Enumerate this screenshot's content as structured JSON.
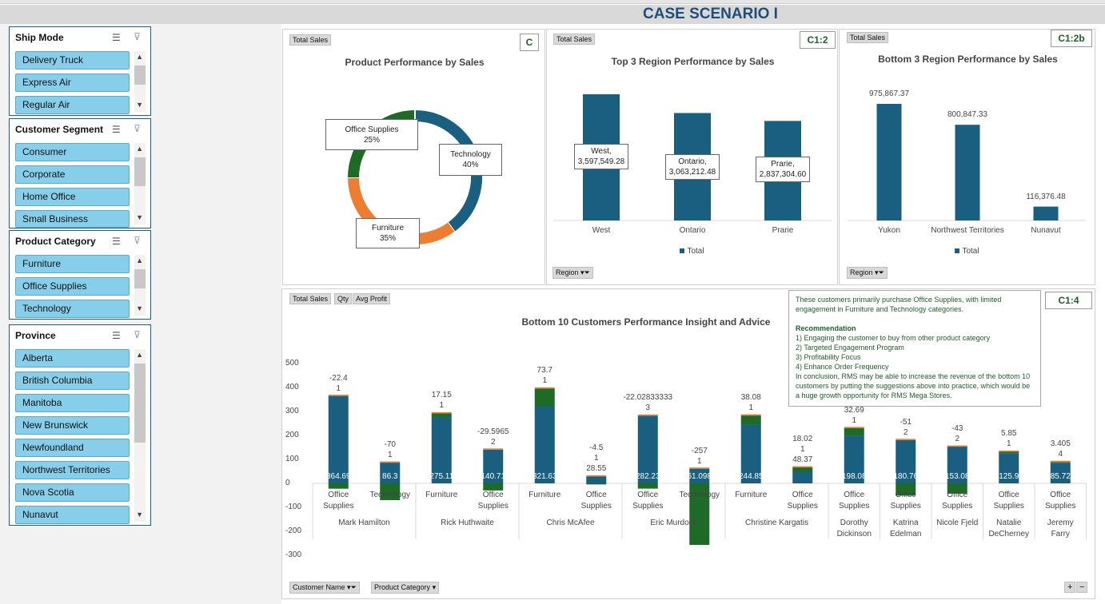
{
  "title": "CASE SCENARIO I",
  "slicers": [
    {
      "title": "Ship Mode",
      "items": [
        "Delivery Truck",
        "Express Air",
        "Regular Air"
      ]
    },
    {
      "title": "Customer Segment",
      "items": [
        "Consumer",
        "Corporate",
        "Home Office",
        "Small Business"
      ]
    },
    {
      "title": "Product Category",
      "items": [
        "Furniture",
        "Office Supplies",
        "Technology"
      ]
    },
    {
      "title": "Province",
      "items": [
        "Alberta",
        "British Columbia",
        "Manitoba",
        "New Brunswick",
        "Newfoundland",
        "Northwest Territories",
        "Nova Scotia",
        "Nunavut"
      ]
    }
  ],
  "colors": {
    "sales": "#1a5e80",
    "furniture": "#ed7d31",
    "office": "#1e6b28",
    "technology": "#1a5e80",
    "profit": "#1e6b28",
    "qty": "#ed7d31"
  },
  "panel1": {
    "field_button": "Total Sales",
    "cell": "C",
    "chart_data": {
      "type": "pie",
      "title": "Product Performance by Sales",
      "slices": [
        {
          "name": "Technology",
          "value": 40,
          "label": "40%"
        },
        {
          "name": "Furniture",
          "value": 35,
          "label": "35%"
        },
        {
          "name": "Office Supplies",
          "value": 25,
          "label": "25%"
        }
      ]
    }
  },
  "panel2": {
    "field_button": "Total Sales",
    "cell": "C1:2",
    "filter_button": "Region",
    "chart_data": {
      "type": "bar",
      "title": "Top 3 Region Performance by Sales",
      "categories": [
        "West",
        "Ontario",
        "Prarie"
      ],
      "values": [
        3597549.28,
        3063212.48,
        2837304.6
      ],
      "labels": [
        "West,\n3,597,549.28",
        "Ontario,\n3,063,212.48",
        "Prarie,\n2,837,304.60"
      ],
      "legend": "Total"
    }
  },
  "panel3": {
    "field_button": "Total Sales",
    "cell": "C1:2b",
    "filter_button": "Region",
    "chart_data": {
      "type": "bar",
      "title": "Bottom 3 Region Performance by Sales",
      "categories": [
        "Yukon",
        "Northwest Territories",
        "Nunavut"
      ],
      "values": [
        975867.37,
        800847.33,
        116376.48
      ],
      "labels": [
        "975,867.37",
        "800,847.33",
        "116,376.48"
      ],
      "legend": "Total"
    }
  },
  "panel4": {
    "field_buttons": [
      "Total Sales",
      "Qty",
      "Avg Profit"
    ],
    "cell": "C1:4",
    "filter_buttons": [
      "Customer Name",
      "Product Category"
    ],
    "note": {
      "intro": "These customers primarily purchase Office Supplies, with limited engagement in Furniture and Technology categories.",
      "heading": "Recommendation",
      "items": [
        "1) Engaging the customer to buy from other product category",
        "2) Targeted Engagement Program",
        "3) Profitability Focus",
        "4)  Enhance Order Frequency"
      ],
      "conclusion": "In conclusion, RMS may be able to increase the revenue of the bottom 10 customers by putting the suggestions above into practice, which would be a huge growth opportunity for RMS Mega Stores."
    },
    "chart_data": {
      "type": "bar",
      "stacked": true,
      "title": "Bottom 10 Customers Performance Insight and Advice",
      "ylim": [
        -300,
        500
      ],
      "yticks": [
        500,
        400,
        300,
        200,
        100,
        0,
        -100,
        -200,
        -300
      ],
      "groups": [
        {
          "name": "Mark Hamilton",
          "n": 2
        },
        {
          "name": "Rick Huthwaite",
          "n": 2
        },
        {
          "name": "Chris McAfee",
          "n": 2
        },
        {
          "name": "Eric Murdock",
          "n": 2
        },
        {
          "name": "Christine Kargatis",
          "n": 2
        },
        {
          "name": "Dorothy Dickinson",
          "n": 1
        },
        {
          "name": "Katrina Edelman",
          "n": 1
        },
        {
          "name": "Nicole Fjeld",
          "n": 1
        },
        {
          "name": "Natalie DeCherney",
          "n": 1
        },
        {
          "name": "Jeremy Farry",
          "n": 1
        }
      ],
      "categories": [
        "Office Supplies",
        "Technology",
        "Furniture",
        "Office Supplies",
        "Furniture",
        "Office Supplies",
        "Office Supplies",
        "Technology",
        "Furniture",
        "Office Supplies",
        "Office Supplies",
        "Office Supplies",
        "Office Supplies",
        "Office Supplies",
        "Office Supplies"
      ],
      "series": [
        {
          "name": "Total Sales",
          "values": [
            364.69,
            86.3,
            275.11,
            140.71,
            321.63,
            28.55,
            282.23,
            61.098,
            244.85,
            48.37,
            198.08,
            180.76,
            153.08,
            125.9,
            85.72
          ]
        },
        {
          "name": "Qty",
          "values": [
            1,
            1,
            1,
            2,
            1,
            1,
            3,
            1,
            1,
            1,
            1,
            2,
            2,
            1,
            4
          ]
        },
        {
          "name": "Avg Profit",
          "values": [
            -22.4,
            -70,
            17.15,
            -29.5965,
            73.7,
            -4.5,
            -22.02833333,
            -257,
            38.08,
            18.02,
            32.69,
            -51,
            -43,
            5.85,
            3.405
          ]
        }
      ]
    }
  }
}
